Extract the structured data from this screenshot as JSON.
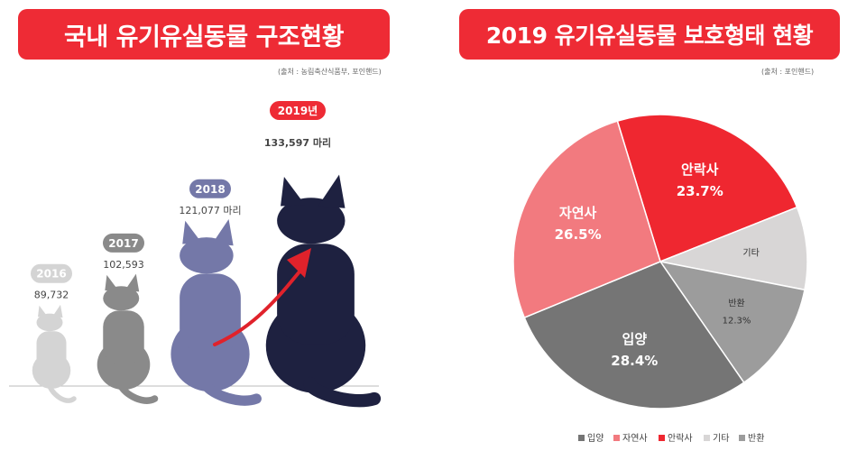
{
  "left_panel": {
    "title": "국내 유기유실동물 구조현황",
    "source": "(출처 : 농림축산식품부, 포인핸드)"
  },
  "right_panel": {
    "title": "2019 유기유실동물 보호형태 현황",
    "source": "(출처 : 포인핸드)"
  },
  "chart_data": [
    {
      "type": "bar",
      "categories": [
        "2016",
        "2017",
        "2018",
        "2019년"
      ],
      "series": [
        {
          "values": [
            89732,
            102593,
            121077,
            133597
          ]
        }
      ],
      "value_labels": [
        "89,732",
        "102,593",
        "121,077 마리",
        "133,597 마리"
      ],
      "colors": [
        "#d4d4d4",
        "#8a8a8a",
        "#7478a8",
        "#1e2140"
      ],
      "highlight_color": "#ee2b35"
    },
    {
      "type": "pie",
      "slices": [
        {
          "label": "안락사",
          "value": 23.7,
          "value_text": "23.7%",
          "color": "#ef2730"
        },
        {
          "label": "기타",
          "value": 9.1,
          "value_text": "",
          "color": "#d8d6d6"
        },
        {
          "label": "반환",
          "value": 12.3,
          "value_text": "12.3%",
          "color": "#9c9c9c"
        },
        {
          "label": "입양",
          "value": 28.4,
          "value_text": "28.4%",
          "color": "#757575"
        },
        {
          "label": "자연사",
          "value": 26.5,
          "value_text": "26.5%",
          "color": "#f27a7f"
        }
      ],
      "legend": [
        "입양",
        "자연사",
        "안락사",
        "기타",
        "반환"
      ],
      "legend_colors": [
        "#757575",
        "#f27a7f",
        "#ef2730",
        "#d8d6d6",
        "#9c9c9c"
      ]
    }
  ]
}
